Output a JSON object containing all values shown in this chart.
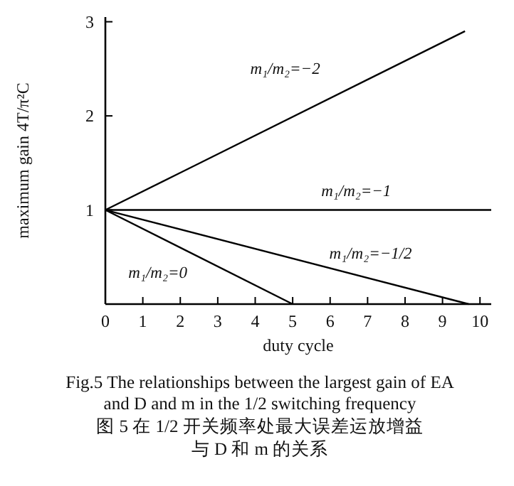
{
  "chart_data": {
    "type": "line",
    "xlabel": "duty cycle",
    "ylabel": "maximum gain 4T/π²C",
    "xlim": [
      0,
      10.3
    ],
    "ylim": [
      0,
      3.05
    ],
    "xticks": [
      0,
      1,
      2,
      3,
      4,
      5,
      6,
      7,
      8,
      9,
      10
    ],
    "yticks": [
      1,
      2,
      3
    ],
    "grid": false,
    "marker": "none",
    "line_style": "solid",
    "series": [
      {
        "name": "m₁/m₂=−2",
        "color": "#000000",
        "x": [
          0,
          9.6
        ],
        "values": [
          1,
          2.9
        ]
      },
      {
        "name": "m₁/m₂=−1",
        "color": "#000000",
        "x": [
          0,
          10.3
        ],
        "values": [
          1,
          1
        ]
      },
      {
        "name": "m₁/m₂=−1/2",
        "color": "#000000",
        "x": [
          0,
          9.7
        ],
        "values": [
          1,
          0
        ]
      },
      {
        "name": "m₁/m₂=0",
        "color": "#000000",
        "x": [
          0,
          5
        ],
        "values": [
          1,
          0
        ]
      }
    ],
    "annotations": [
      "Fig.5 The relationships between the largest gain of EA\nand D and m in the 1/2 switching frequency",
      "图 5 在 1/2 开关频率处最大误差运放增益",
      "与 D 和 m 的关系"
    ]
  }
}
